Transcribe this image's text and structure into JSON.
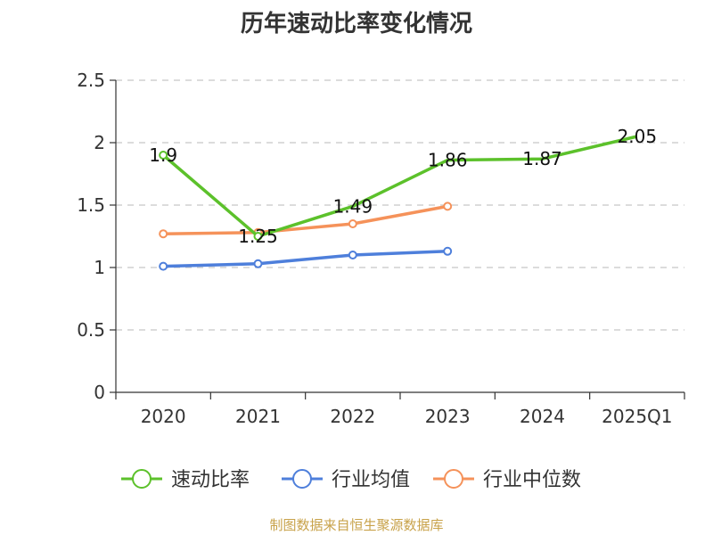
{
  "chart_data": {
    "type": "line",
    "title": "历年速动比率变化情况",
    "categories": [
      "2020",
      "2021",
      "2022",
      "2023",
      "2024",
      "2025Q1"
    ],
    "ylim": [
      0,
      2.5
    ],
    "yticks": [
      0,
      0.5,
      1,
      1.5,
      2,
      2.5
    ],
    "ytick_labels": [
      "0",
      "0.5",
      "1",
      "1.5",
      "2",
      "2.5"
    ],
    "grid": "horizontal-dashed",
    "legend_position": "bottom",
    "series": [
      {
        "name": "速动比率",
        "color": "#5cc12b",
        "values": [
          1.9,
          1.25,
          1.49,
          1.86,
          1.87,
          2.05
        ],
        "labels": [
          "1.9",
          "1.25",
          "1.49",
          "1.86",
          "1.87",
          "2.05"
        ],
        "show_markers": [
          true,
          true,
          false,
          false,
          false,
          false
        ]
      },
      {
        "name": "行业均值",
        "color": "#4e7fdb",
        "values": [
          1.01,
          1.03,
          1.1,
          1.13,
          null,
          null
        ]
      },
      {
        "name": "行业中位数",
        "color": "#f5925a",
        "values": [
          1.27,
          1.28,
          1.35,
          1.49,
          null,
          null
        ]
      }
    ]
  },
  "source": "制图数据来自恒生聚源数据库"
}
